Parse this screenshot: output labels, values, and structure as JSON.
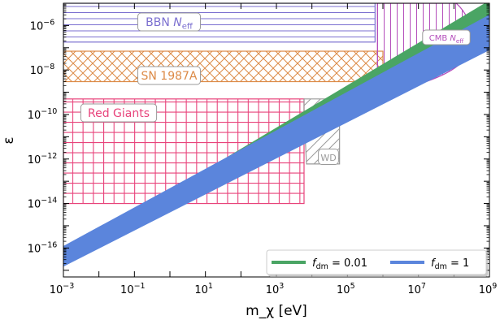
{
  "chart_data": {
    "type": "line",
    "title": "",
    "xlabel": "m_χ [eV]",
    "ylabel": "ε",
    "xscale": "log",
    "yscale": "log",
    "xlim": [
      0.001,
      1000000000
    ],
    "ylim": [
      5e-18,
      1e-05
    ],
    "x_ticks": [
      {
        "value": 0.001,
        "base": "10",
        "exp": "−3"
      },
      {
        "value": 0.1,
        "base": "10",
        "exp": "−1"
      },
      {
        "value": 10,
        "base": "10",
        "exp": "1"
      },
      {
        "value": 1000,
        "base": "10",
        "exp": "3"
      },
      {
        "value": 100000,
        "base": "10",
        "exp": "5"
      },
      {
        "value": 10000000,
        "base": "10",
        "exp": "7"
      },
      {
        "value": 1000000000,
        "base": "10",
        "exp": "9"
      }
    ],
    "y_ticks": [
      {
        "value": 1e-06,
        "base": "10",
        "exp": "−6"
      },
      {
        "value": 1e-08,
        "base": "10",
        "exp": "−8"
      },
      {
        "value": 1e-10,
        "base": "10",
        "exp": "−10"
      },
      {
        "value": 1e-12,
        "base": "10",
        "exp": "−12"
      },
      {
        "value": 1e-14,
        "base": "10",
        "exp": "−14"
      },
      {
        "value": 1e-16,
        "base": "10",
        "exp": "−16"
      }
    ],
    "series": [
      {
        "name": "f_dm = 0.01",
        "color": "#4aa564",
        "x": [
          0.001,
          1000000000
        ],
        "y_low": [
          3.2e-17,
          2e-06
        ],
        "y_high": [
          4.8e-17,
          1.3e-05
        ]
      },
      {
        "name": "f_dm = 1",
        "color": "#5b85dc",
        "x": [
          0.001,
          1000000000
        ],
        "y_low": [
          1.5e-17,
          8e-08
        ],
        "y_high": [
          1.2e-16,
          3e-06
        ]
      }
    ],
    "regions": [
      {
        "label": "BBN N_eff",
        "color": "#7b6fd0",
        "hatch": "horizontal",
        "x": [
          0.001,
          600000
        ],
        "y": [
          1.8e-07,
          1e-05
        ]
      },
      {
        "label": "SN 1987A",
        "color": "#dc8a46",
        "hatch": "cross-diagonal",
        "x": [
          0.001,
          1000000
        ],
        "y": [
          3e-09,
          7e-08
        ]
      },
      {
        "label": "Red Giants",
        "color": "#e8437b",
        "hatch": "grid",
        "x": [
          0.001,
          6000
        ],
        "y": [
          1e-14,
          5e-10
        ]
      },
      {
        "label": "WD",
        "color": "#9a9a9a",
        "hatch": "diagonal",
        "x": [
          6000,
          60000
        ],
        "y": [
          6e-13,
          5e-10
        ]
      },
      {
        "label": "CMB N_eff",
        "color": "#b44dbb",
        "hatch": "vertical",
        "x": [
          700000,
          300000000
        ],
        "y": [
          1.5e-09,
          1e-05
        ]
      }
    ],
    "legend": {
      "position": "lower-right",
      "entries": [
        {
          "label": "f_dm = 0.01",
          "color": "#4aa564"
        },
        {
          "label": "f_dm = 1",
          "color": "#5b85dc"
        }
      ]
    },
    "grid": false
  }
}
